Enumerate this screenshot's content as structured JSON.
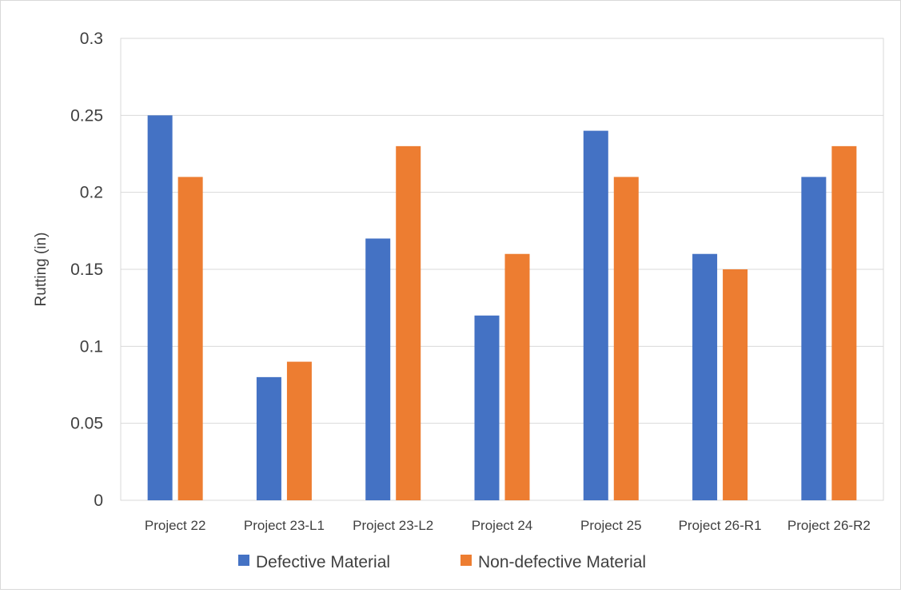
{
  "chart_data": {
    "type": "bar",
    "title": "",
    "xlabel": "",
    "ylabel": "Rutting  (in)",
    "ylim": [
      0,
      0.3
    ],
    "yticks": [
      0,
      0.05,
      0.1,
      0.15,
      0.2,
      0.25,
      0.3
    ],
    "ytick_labels": [
      "0",
      "0.05",
      "0.1",
      "0.15",
      "0.2",
      "0.25",
      "0.3"
    ],
    "grid": true,
    "legend_position": "bottom",
    "categories": [
      "Project 22",
      "Project 23-L1",
      "Project 23-L2",
      "Project 24",
      "Project 25",
      "Project 26-R1",
      "Project 26-R2"
    ],
    "series": [
      {
        "name": "Defective Material",
        "color": "#4472C4",
        "values": [
          0.25,
          0.08,
          0.17,
          0.12,
          0.24,
          0.16,
          0.21
        ]
      },
      {
        "name": "Non-defective Material",
        "color": "#ED7D31",
        "values": [
          0.21,
          0.09,
          0.23,
          0.16,
          0.21,
          0.15,
          0.23
        ]
      }
    ]
  }
}
